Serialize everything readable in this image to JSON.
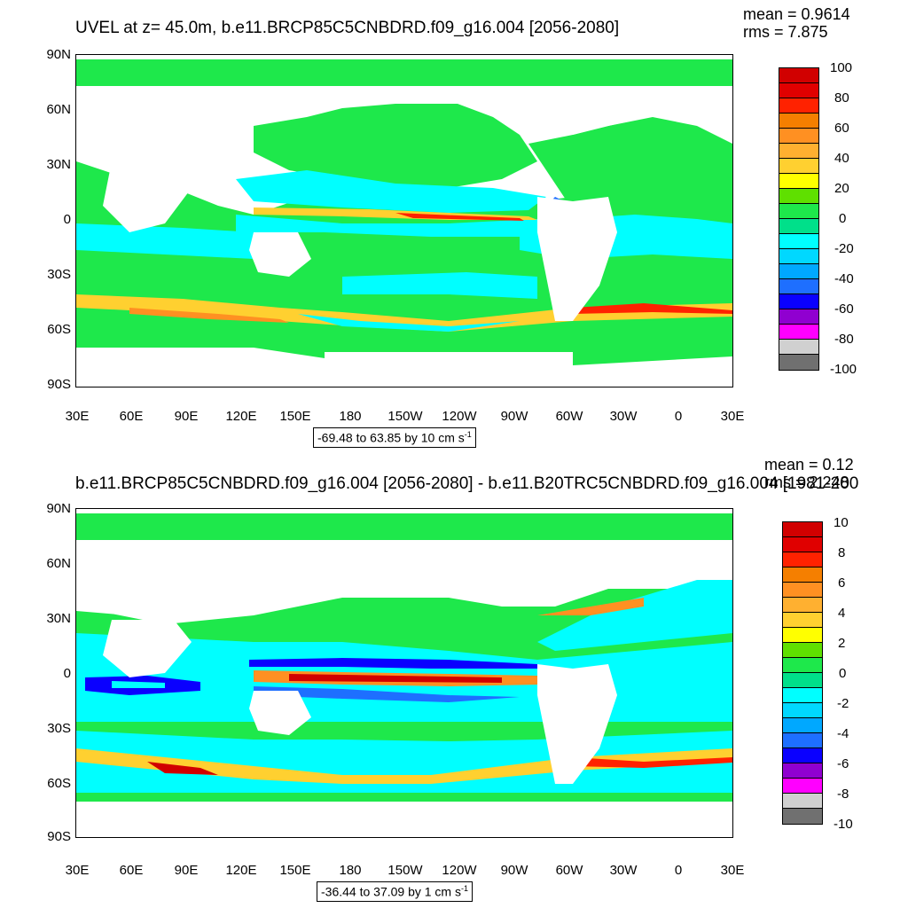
{
  "panels": [
    {
      "title": "UVEL at z=  45.0m, b.e11.BRCP85C5CNBDRD.f09_g16.004 [2056-2080]",
      "mean": "mean = 0.9614",
      "rms": "rms = 7.875",
      "range": "-69.48 to 63.85 by 10 cm s",
      "range_sup": "-1",
      "legend_labels": [
        "100",
        "80",
        "60",
        "40",
        "20",
        "0",
        "-20",
        "-40",
        "-60",
        "-80",
        "-100"
      ]
    },
    {
      "title": "b.e11.BRCP85C5CNBDRD.f09_g16.004 [2056-2080] - b.e11.B20TRC5CNBDRD.f09_g16.004 [1981-200",
      "mean": "mean = 0.12",
      "rms": "rms = 2.248",
      "range": "-36.44 to 37.09 by 1 cm s",
      "range_sup": "-1",
      "legend_labels": [
        "10",
        "8",
        "6",
        "4",
        "2",
        "0",
        "-2",
        "-4",
        "-6",
        "-8",
        "-10"
      ]
    }
  ],
  "axes": {
    "y_labels": [
      "90N",
      "60N",
      "30N",
      "0",
      "30S",
      "60S",
      "90S"
    ],
    "x_labels": [
      "30E",
      "60E",
      "90E",
      "120E",
      "150E",
      "180",
      "150W",
      "120W",
      "90W",
      "60W",
      "30W",
      "0",
      "30E"
    ]
  },
  "colors": {
    "palette": [
      "#d10000",
      "#e00000",
      "#ff2200",
      "#f57f00",
      "#ff9022",
      "#ffb030",
      "#ffd030",
      "#ffff00",
      "#5fe000",
      "#1ee84b",
      "#00e08a",
      "#00ffff",
      "#00d8ff",
      "#00a8ff",
      "#1e6fff",
      "#0a00ff",
      "#9000d0",
      "#ff00ff",
      "#d0d0d0",
      "#707070"
    ],
    "ocean_base": "#1ee84b",
    "land": "#ffffff"
  }
}
